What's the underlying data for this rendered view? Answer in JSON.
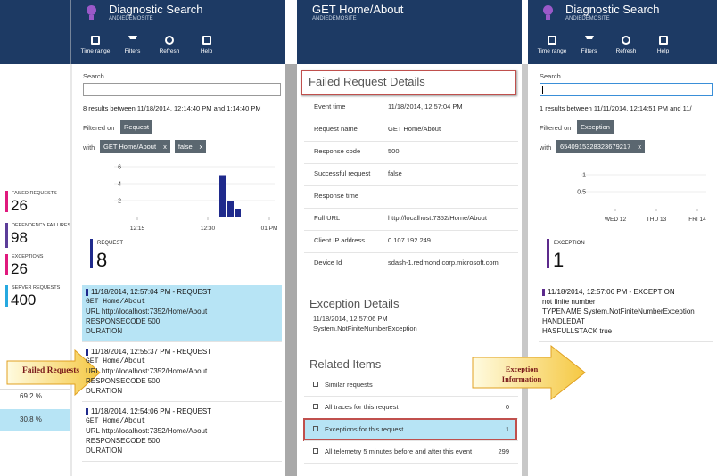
{
  "left_strip": {
    "metrics": [
      {
        "label": "FAILED REQUESTS",
        "value": 26
      },
      {
        "label": "DEPENDENCY FAILURES",
        "value": 98
      },
      {
        "label": "EXCEPTIONS",
        "value": 26
      },
      {
        "label": "SERVER REQUESTS",
        "value": 400
      }
    ],
    "percents": [
      "69.2 %",
      "30.8 %"
    ]
  },
  "search_panel": {
    "title": "Diagnostic Search",
    "subtitle": "ANDIEDEMOSITE",
    "toolbar": [
      "Time range",
      "Filters",
      "Refresh",
      "Help"
    ],
    "search_label": "Search",
    "results_text": "8 results between 11/18/2014, 12:14:40 PM and 1:14:40 PM",
    "filtered_label": "Filtered on",
    "filter_chip": "Request",
    "with_label": "with",
    "with_chips": [
      "GET Home/About",
      "false"
    ],
    "chip_close": "x",
    "chart": {
      "ylim": [
        0,
        6
      ],
      "yticks": [
        2,
        4,
        6
      ],
      "xticks": [
        "12:15",
        "12:30",
        "01 PM"
      ],
      "bars": [
        5,
        2,
        1
      ]
    },
    "count": {
      "label": "REQUEST",
      "value": 8
    },
    "items": [
      {
        "header": "11/18/2014, 12:57:04 PM - REQUEST",
        "lines": [
          "GET Home/About",
          "URL http://localhost:7352/Home/About",
          "RESPONSECODE 500",
          "DURATION"
        ]
      },
      {
        "header": "11/18/2014, 12:55:37 PM - REQUEST",
        "lines": [
          "GET Home/About",
          "URL http://localhost:7352/Home/About",
          "RESPONSECODE 500",
          "DURATION"
        ]
      },
      {
        "header": "11/18/2014, 12:54:06 PM - REQUEST",
        "lines": [
          "GET Home/About",
          "URL http://localhost:7352/Home/About",
          "RESPONSECODE 500",
          "DURATION"
        ]
      }
    ]
  },
  "detail_panel": {
    "title": "GET Home/About",
    "subtitle": "ANDIEDEMOSITE",
    "section_title": "Failed Request Details",
    "fields": [
      {
        "label": "Event time",
        "value": "11/18/2014, 12:57:04 PM"
      },
      {
        "label": "Request name",
        "value": "GET Home/About"
      },
      {
        "label": "Response code",
        "value": "500"
      },
      {
        "label": "Successful request",
        "value": "false"
      },
      {
        "label": "Response time",
        "value": ""
      },
      {
        "label": "Full URL",
        "value": "http://localhost:7352/Home/About"
      },
      {
        "label": "Client IP address",
        "value": "0.107.192.249"
      },
      {
        "label": "Device Id",
        "value": "sdash-1.redmond.corp.microsoft.com"
      }
    ],
    "exception_title": "Exception Details",
    "exception_lines": [
      "11/18/2014, 12:57:06 PM",
      "System.NotFiniteNumberException"
    ],
    "related_title": "Related Items",
    "related": [
      {
        "label": "Similar requests"
      },
      {
        "label": "All traces for this request",
        "count": 0
      },
      {
        "label": "Exceptions for this request",
        "count": 1
      },
      {
        "label": "All telemetry 5 minutes before and after this event",
        "count": 299
      }
    ]
  },
  "exception_panel": {
    "title": "Diagnostic Search",
    "subtitle": "ANDIEDEMOSITE",
    "toolbar": [
      "Time range",
      "Filters",
      "Refresh",
      "Help"
    ],
    "search_label": "Search",
    "results_text": "1 results between 11/11/2014, 12:14:51 PM and 11/",
    "filtered_label": "Filtered on",
    "filter_chip": "Exception",
    "with_label": "with",
    "with_chips": [
      "6540915328323679217"
    ],
    "chip_close": "x",
    "chart": {
      "ylim": [
        0,
        1
      ],
      "yticks": [
        0.5,
        1
      ],
      "xticks": [
        "WED 12",
        "THU 13",
        "FRI 14"
      ],
      "bars": []
    },
    "count": {
      "label": "EXCEPTION",
      "value": 1
    },
    "items": [
      {
        "header": "11/18/2014, 12:57:06 PM - EXCEPTION",
        "lines": [
          "not finite number",
          "TYPENAME System.NotFiniteNumberException",
          "HANDLEDAT",
          "HASFULLSTACK true"
        ]
      }
    ]
  },
  "callouts": [
    "Failed Requests",
    "Exception Information"
  ]
}
